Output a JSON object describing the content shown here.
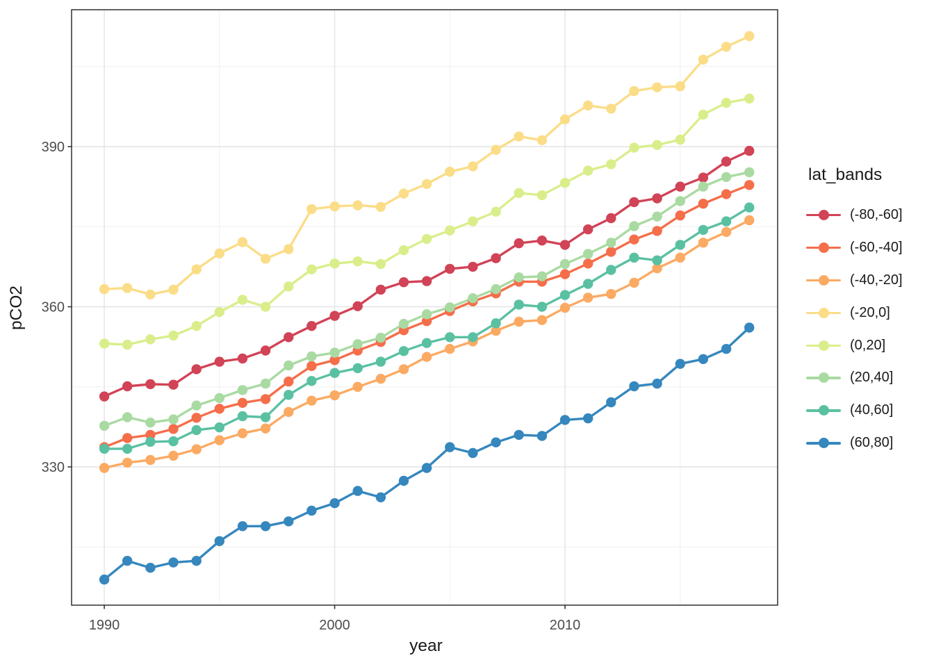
{
  "figure": {
    "x_axis_title": "year",
    "y_axis_title": "pCO2",
    "legend_title": "lat_bands"
  },
  "style": {
    "panel_background": "#ffffff",
    "panel_border_color": "#3c3c3c",
    "major_grid_color": "#e4e4e4",
    "minor_grid_color": "#f0f0f0",
    "tick_mark_color": "#333333",
    "tick_label_color": "#4d4d4d",
    "title_color": "#1a1a1a"
  },
  "chart_data": {
    "type": "line",
    "title": "",
    "xlabel": "year",
    "ylabel": "pCO2",
    "legend_title": "lat_bands",
    "legend_position": "right",
    "grid": true,
    "marker": "point",
    "x_range": [
      1988.58,
      2019.23
    ],
    "y_range": [
      304.1,
      415.64
    ],
    "x_major_ticks": [
      1990,
      2000,
      2010
    ],
    "x_minor_gridlines": [
      1995,
      2005,
      2015
    ],
    "y_major_ticks": [
      330,
      360,
      390
    ],
    "y_minor_gridlines": [
      315,
      345,
      375,
      405
    ],
    "x": [
      1990,
      1991,
      1992,
      1993,
      1994,
      1995,
      1996,
      1997,
      1998,
      1999,
      2000,
      2001,
      2002,
      2003,
      2004,
      2005,
      2006,
      2007,
      2008,
      2009,
      2010,
      2011,
      2012,
      2013,
      2014,
      2015,
      2016,
      2017,
      2018
    ],
    "series": [
      {
        "name": "(-80,-60]",
        "color": "#d14356",
        "values": [
          343.2,
          345.1,
          345.5,
          345.4,
          348.3,
          349.7,
          350.3,
          351.8,
          354.3,
          356.4,
          358.3,
          360.1,
          363.2,
          364.6,
          364.8,
          367.1,
          367.5,
          369.1,
          371.9,
          372.4,
          371.6,
          374.5,
          376.6,
          379.6,
          380.3,
          382.5,
          384.2,
          387.2,
          389.2
        ]
      },
      {
        "name": "(-60,-40]",
        "color": "#f46e4a",
        "values": [
          333.7,
          335.4,
          336.0,
          337.1,
          339.2,
          340.9,
          342.0,
          342.7,
          346.0,
          348.9,
          350.0,
          351.8,
          353.4,
          355.6,
          357.3,
          359.2,
          361.0,
          362.5,
          364.7,
          364.7,
          366.1,
          368.1,
          370.3,
          372.6,
          374.2,
          377.1,
          379.3,
          381.1,
          382.8
        ]
      },
      {
        "name": "(-40,-20]",
        "color": "#fbaa63",
        "values": [
          329.8,
          330.8,
          331.3,
          332.1,
          333.3,
          335.0,
          336.3,
          337.2,
          340.3,
          342.4,
          343.4,
          345.0,
          346.5,
          348.3,
          350.6,
          352.1,
          353.5,
          355.5,
          357.2,
          357.5,
          359.8,
          361.7,
          362.4,
          364.5,
          367.2,
          369.2,
          372.0,
          374.0,
          376.2
        ]
      },
      {
        "name": "(-20,0]",
        "color": "#fbdd88",
        "values": [
          363.3,
          363.5,
          362.3,
          363.2,
          367.0,
          370.0,
          372.1,
          369.0,
          370.8,
          378.3,
          378.8,
          379.0,
          378.7,
          381.2,
          383.0,
          385.3,
          386.3,
          389.4,
          391.9,
          391.2,
          395.1,
          397.7,
          397.1,
          400.4,
          401.1,
          401.3,
          406.3,
          408.7,
          410.7
        ]
      },
      {
        "name": "(0,20]",
        "color": "#d9ee8b",
        "values": [
          353.1,
          352.9,
          353.9,
          354.6,
          356.4,
          359.0,
          361.3,
          360.0,
          363.8,
          367.0,
          368.1,
          368.5,
          368.0,
          370.6,
          372.7,
          374.3,
          376.0,
          377.8,
          381.3,
          380.9,
          383.2,
          385.5,
          386.7,
          389.8,
          390.3,
          391.3,
          396.0,
          398.2,
          399.0
        ]
      },
      {
        "name": "(20,40]",
        "color": "#a9daa2",
        "values": [
          337.7,
          339.3,
          338.3,
          338.9,
          341.5,
          342.9,
          344.4,
          345.6,
          349.0,
          350.7,
          351.4,
          353.0,
          354.2,
          356.8,
          358.6,
          359.9,
          361.6,
          363.3,
          365.5,
          365.7,
          368.0,
          369.9,
          372.0,
          375.1,
          376.9,
          379.8,
          382.5,
          384.3,
          385.2
        ]
      },
      {
        "name": "(40,60]",
        "color": "#5ac0a2",
        "values": [
          333.4,
          333.4,
          334.7,
          334.8,
          336.9,
          337.4,
          339.5,
          339.3,
          343.5,
          346.1,
          347.6,
          348.5,
          349.7,
          351.7,
          353.2,
          354.3,
          354.3,
          356.9,
          360.4,
          360.0,
          362.2,
          364.3,
          366.9,
          369.2,
          368.7,
          371.6,
          374.4,
          376.0,
          378.6
        ]
      },
      {
        "name": "(60,80]",
        "color": "#3587bd",
        "values": [
          308.9,
          312.4,
          311.1,
          312.1,
          312.4,
          316.1,
          318.9,
          318.9,
          319.8,
          321.8,
          323.2,
          325.5,
          324.3,
          327.4,
          329.8,
          333.7,
          332.6,
          334.6,
          336.0,
          335.8,
          338.8,
          339.1,
          342.1,
          345.1,
          345.6,
          349.3,
          350.2,
          352.1,
          356.1
        ]
      }
    ]
  }
}
